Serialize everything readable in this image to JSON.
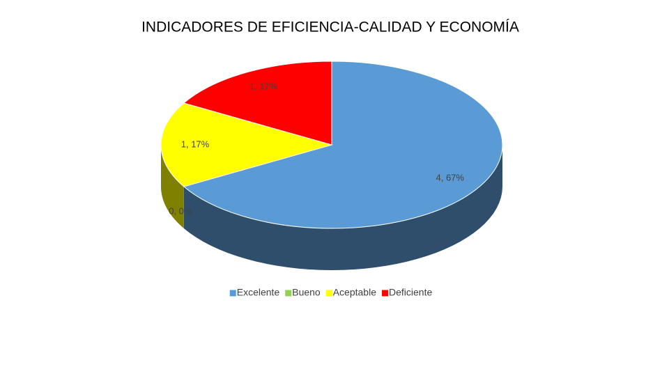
{
  "chart_data": {
    "type": "pie3d",
    "title": "INDICADORES DE EFICIENCIA-CALIDAD Y ECONOMÍA",
    "categories": [
      "Excelente",
      "Bueno",
      "Aceptable",
      "Deficiente"
    ],
    "values": [
      4,
      0,
      1,
      1
    ],
    "value_labels": [
      "4, 67%",
      "0, 0%",
      "1, 17%",
      "1, 17%"
    ],
    "colors": [
      "#5b9bd5",
      "#92d050",
      "#ffff00",
      "#ff0000"
    ],
    "legend": "bottom"
  }
}
